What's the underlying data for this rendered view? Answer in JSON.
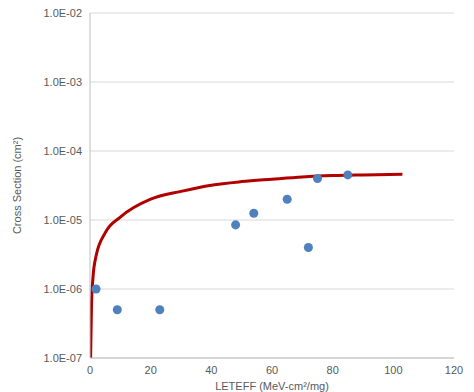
{
  "chart_data": {
    "type": "scatter",
    "x_label": "LETEFF (MeV-cm²/mg)",
    "y_label": "Cross Section (cm²)",
    "xlim": [
      0,
      120
    ],
    "xticks": [
      0,
      20,
      40,
      60,
      80,
      100,
      120
    ],
    "ylim": [
      1e-07,
      0.01
    ],
    "yticks": [
      {
        "value": 1e-07,
        "label": "1.0E-07"
      },
      {
        "value": 1e-06,
        "label": "1.0E-06"
      },
      {
        "value": 1e-05,
        "label": "1.0E-05"
      },
      {
        "value": 0.0001,
        "label": "1.0E-04"
      },
      {
        "value": 0.001,
        "label": "1.0E-03"
      },
      {
        "value": 0.01,
        "label": "1.0E-02"
      }
    ],
    "log": "y",
    "grid": true,
    "series": [
      {
        "type": "scatter",
        "marker": "circle",
        "color": "#4f81bd",
        "x": [
          2,
          9,
          23,
          48,
          54,
          65,
          72,
          75,
          85
        ],
        "values": [
          1e-06,
          5e-07,
          5e-07,
          8.5e-06,
          1.25e-05,
          2e-05,
          4e-06,
          4e-05,
          4.5e-05
        ]
      },
      {
        "type": "line",
        "line_style": "solid",
        "color": "#b00000",
        "x": [
          0.2,
          0.5,
          1,
          2,
          5,
          10,
          20,
          30,
          40,
          50,
          60,
          70,
          80,
          90,
          103
        ],
        "values": [
          1e-07,
          6e-07,
          1.5e-06,
          3e-06,
          6.5e-06,
          1.1e-05,
          2e-05,
          2.6e-05,
          3.2e-05,
          3.6e-05,
          3.9e-05,
          4.2e-05,
          4.4e-05,
          4.5e-05,
          4.6e-05
        ]
      }
    ]
  }
}
